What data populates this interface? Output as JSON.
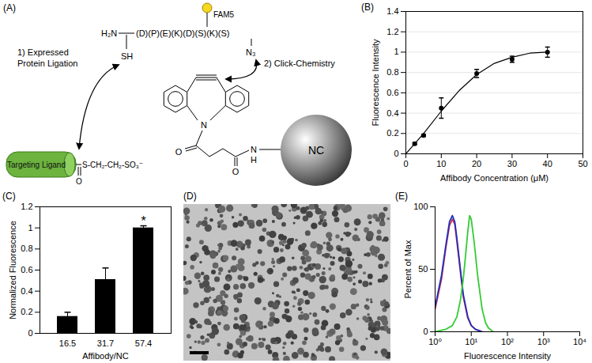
{
  "diagram": {
    "title": "(A)",
    "ligand": "Targeting Ligand",
    "thioester": "S-CH₂-CH₂-SO₃⁻",
    "carbonyl_oxygen": "O",
    "amine": "H₂N",
    "thiol": "SH",
    "sequence": "(D)(P)(E)(K)(D)(S)(K)(S)",
    "dye": "FAM5",
    "azide": "N₃",
    "step1": [
      "1) Expressed",
      "Protein Ligation"
    ],
    "step2": "2) Click-Chemistry",
    "ring_nitrogen": "N",
    "linker_oxygens": [
      "O",
      "O"
    ],
    "amide": [
      "N",
      "H"
    ],
    "nanocrystal": "NC"
  },
  "image": {
    "title": "(D)"
  },
  "chart_data": [
    {
      "type": "scatter",
      "title": "(B)",
      "x_label": "Affibody Concentration (μM)",
      "y_label": "Fluorescence Intensity",
      "x": [
        2.5,
        5,
        10,
        20,
        30,
        40
      ],
      "values": [
        0.1,
        0.18,
        0.45,
        0.79,
        0.93,
        1.0
      ],
      "error": [
        0.01,
        0.01,
        0.1,
        0.04,
        0.03,
        0.05
      ],
      "fit": {
        "x": [
          0,
          5,
          10,
          15,
          20,
          25,
          30,
          35,
          40
        ],
        "values": [
          0,
          0.2,
          0.42,
          0.62,
          0.78,
          0.89,
          0.95,
          0.99,
          1.0
        ]
      },
      "color": "#000000",
      "marker": "circle",
      "xlim": [
        0,
        50
      ],
      "xticks": [
        0,
        10,
        20,
        30,
        40,
        50
      ],
      "ylim": [
        0,
        1.4
      ],
      "yticks": [
        0,
        0.2,
        0.4,
        0.6,
        0.8,
        1,
        1.2,
        1.4
      ],
      "grid": true
    },
    {
      "type": "bar",
      "title": "(C)",
      "x_label": "Affibody/NC",
      "y_label": "Normalized Fluorescence",
      "categories": [
        "16.5",
        "31.7",
        "57.4"
      ],
      "values": [
        0.16,
        0.51,
        1.0
      ],
      "error": [
        0.04,
        0.11,
        0.02
      ],
      "color": "#000000",
      "ylim": [
        0,
        1.2
      ],
      "yticks": [
        0,
        0.2,
        0.4,
        0.6,
        0.8,
        1,
        1.2
      ],
      "grid": false,
      "annotations": [
        {
          "category": "57.4",
          "y": 1.05,
          "text": "*"
        }
      ]
    },
    {
      "type": "line",
      "title": "(E)",
      "x_label": "Fluorescence Intensity",
      "y_label": "Percent of Max",
      "log": "x",
      "xlim": [
        1,
        10000
      ],
      "xticks": [
        {
          "value": 1,
          "label": "10⁰"
        },
        {
          "value": 10,
          "label": "10¹"
        },
        {
          "value": 100,
          "label": "10²"
        },
        {
          "value": 1000,
          "label": "10³"
        },
        {
          "value": 10000,
          "label": "10⁴"
        }
      ],
      "ylim": [
        0,
        100
      ],
      "yticks": [
        0,
        50,
        100
      ],
      "grid": false,
      "series": [
        {
          "color": "#d0314a",
          "x": [
            1,
            1.5,
            2,
            2.5,
            3,
            3.5,
            4,
            5,
            6,
            8,
            10,
            13,
            16,
            20
          ],
          "values": [
            18,
            42,
            68,
            85,
            90,
            86,
            72,
            48,
            28,
            11,
            5,
            2,
            1,
            0
          ]
        },
        {
          "color": "#1f2fbf",
          "x": [
            1,
            1.5,
            2,
            2.5,
            3,
            3.5,
            4,
            5,
            6,
            8,
            10,
            13,
            16,
            20
          ],
          "values": [
            20,
            45,
            70,
            88,
            93,
            88,
            75,
            50,
            30,
            12,
            5,
            2,
            1,
            0
          ]
        },
        {
          "color": "#33cc33",
          "x": [
            1,
            2,
            3,
            4,
            5,
            6,
            7,
            8,
            9,
            10,
            12,
            15,
            20,
            25,
            30,
            40
          ],
          "values": [
            0,
            2,
            5,
            12,
            25,
            42,
            62,
            80,
            93,
            90,
            72,
            45,
            18,
            7,
            3,
            0
          ]
        }
      ]
    }
  ]
}
